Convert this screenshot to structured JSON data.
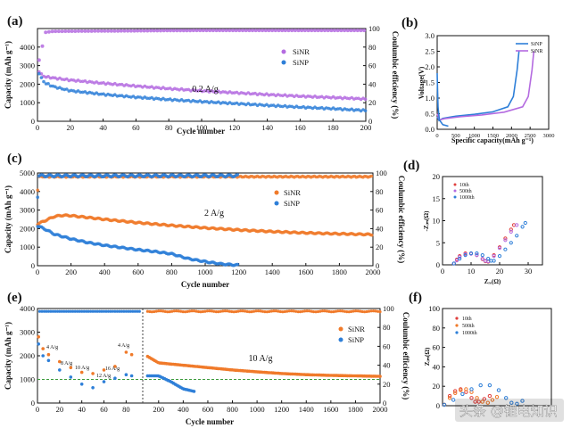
{
  "watermark": "头条 @锂电知识",
  "chart_data": [
    {
      "id": "a",
      "panel_label": "(a)",
      "type": "scatter",
      "xlabel": "Cycle number",
      "ylabel": "Capacity (mAh g⁻¹)",
      "y2label": "Coulumbic efficiency (%)",
      "xlim": [
        0,
        200
      ],
      "ylim": [
        0,
        5000
      ],
      "y2lim": [
        0,
        100
      ],
      "xticks": [
        0,
        20,
        40,
        60,
        80,
        100,
        120,
        140,
        160,
        180,
        200
      ],
      "yticks": [
        0,
        1000,
        2000,
        3000,
        4000
      ],
      "y2ticks": [
        0,
        20,
        40,
        60,
        80,
        100
      ],
      "annotation": "0.2 A/g",
      "legend_position": "upper-right",
      "series": [
        {
          "name": "SiNR",
          "color": "#b46be0",
          "axis": "left",
          "x": [
            1,
            3,
            5,
            10,
            20,
            40,
            60,
            80,
            100,
            120,
            140,
            160,
            180,
            200
          ],
          "y": [
            2700,
            2450,
            2400,
            2330,
            2220,
            2050,
            1900,
            1760,
            1640,
            1540,
            1440,
            1350,
            1280,
            1200
          ]
        },
        {
          "name": "SiNP",
          "color": "#2e7fd8",
          "axis": "left",
          "x": [
            1,
            3,
            5,
            10,
            20,
            40,
            60,
            80,
            100,
            120,
            140,
            160,
            180,
            200
          ],
          "y": [
            2600,
            2200,
            2050,
            1860,
            1650,
            1450,
            1300,
            1170,
            1060,
            960,
            860,
            760,
            680,
            580
          ]
        },
        {
          "name": "",
          "color": "#b46be0",
          "axis": "right",
          "x": [
            1,
            5,
            10,
            100,
            200
          ],
          "y": [
            66,
            96,
            97,
            98,
            98
          ]
        }
      ]
    },
    {
      "id": "b",
      "panel_label": "(b)",
      "type": "line",
      "xlabel": "Specific capacity(mAh g⁻¹)",
      "ylabel": "Voltage(V)",
      "xlim": [
        0,
        3000
      ],
      "ylim": [
        0,
        3.0
      ],
      "xticks": [
        0,
        500,
        1000,
        1500,
        2000,
        2500,
        3000
      ],
      "yticks": [
        0.0,
        0.5,
        1.0,
        1.5,
        2.0,
        2.5,
        3.0
      ],
      "legend_position": "upper-right",
      "series": [
        {
          "name": "SiNP",
          "color": "#2e7fd8",
          "x": [
            0,
            50,
            150,
            500,
            1000,
            1500,
            1900,
            2050,
            2150,
            2200
          ],
          "y": [
            0.4,
            0.28,
            0.35,
            0.42,
            0.48,
            0.56,
            0.72,
            1.05,
            1.9,
            2.5
          ]
        },
        {
          "name": "SiNR",
          "color": "#b46be0",
          "x": [
            0,
            60,
            200,
            600,
            1200,
            1800,
            2300,
            2450,
            2550,
            2600
          ],
          "y": [
            0.5,
            0.3,
            0.34,
            0.4,
            0.46,
            0.55,
            0.72,
            1.05,
            1.9,
            2.5
          ]
        },
        {
          "name": "",
          "color": "#2e7fd8",
          "x": [
            0,
            10,
            25,
            60,
            150,
            300
          ],
          "y": [
            1.8,
            1.3,
            0.7,
            0.3,
            0.15,
            0.1
          ]
        }
      ]
    },
    {
      "id": "c",
      "panel_label": "(c)",
      "type": "scatter",
      "xlabel": "Cycle number",
      "ylabel": "Capacity (mAh g⁻¹)",
      "y2label": "Coulumbic efficiency (%)",
      "xlim": [
        0,
        2000
      ],
      "ylim": [
        0,
        5000
      ],
      "y2lim": [
        0,
        100
      ],
      "xticks": [
        0,
        200,
        400,
        600,
        800,
        1000,
        1200,
        1400,
        1600,
        1800,
        2000
      ],
      "yticks": [
        0,
        1000,
        2000,
        3000,
        4000,
        5000
      ],
      "y2ticks": [
        0,
        20,
        40,
        60,
        80,
        100
      ],
      "annotation": "2 A/g",
      "legend_position": "center-right",
      "series": [
        {
          "name": "SiNR",
          "color": "#f07a2a",
          "axis": "left",
          "x": [
            1,
            50,
            100,
            150,
            200,
            300,
            400,
            600,
            800,
            1000,
            1200,
            1400,
            1600,
            1800,
            2000
          ],
          "y": [
            2250,
            2450,
            2650,
            2720,
            2700,
            2600,
            2500,
            2320,
            2170,
            2040,
            1930,
            1840,
            1770,
            1720,
            1680
          ]
        },
        {
          "name": "SiNP",
          "color": "#2e7fd8",
          "axis": "left",
          "x": [
            1,
            50,
            100,
            200,
            300,
            400,
            500,
            600,
            700,
            800,
            900,
            1000,
            1100,
            1200
          ],
          "y": [
            2150,
            1950,
            1700,
            1450,
            1250,
            1100,
            980,
            860,
            760,
            640,
            380,
            220,
            90,
            30
          ]
        },
        {
          "name": "",
          "color": "#f07a2a",
          "axis": "right",
          "x": [
            1,
            5,
            1200,
            2000
          ],
          "y": [
            82,
            96,
            96,
            96
          ]
        },
        {
          "name": "",
          "color": "#2e7fd8",
          "axis": "right",
          "x": [
            1,
            5,
            1200
          ],
          "y": [
            75,
            97,
            97
          ]
        }
      ]
    },
    {
      "id": "d",
      "panel_label": "(d)",
      "type": "scatter",
      "ylabel": "-Zᵢₘ(Ω)",
      "xlabel": "Zᵣₑ(Ω)",
      "xlim": [
        0,
        35
      ],
      "ylim": [
        0,
        20
      ],
      "xticks": [
        0,
        10,
        20,
        30
      ],
      "yticks": [
        0,
        5,
        10,
        15,
        20
      ],
      "legend_position": "upper-left",
      "series": [
        {
          "name": "10th",
          "color": "#e0403e",
          "x": [
            4,
            5,
            6,
            8,
            10,
            12,
            14,
            15,
            16,
            18,
            20,
            22,
            24,
            25
          ],
          "y": [
            0.3,
            1.2,
            2.0,
            2.6,
            2.6,
            2.2,
            1.3,
            0.8,
            0.7,
            2.2,
            4.0,
            6.0,
            8.0,
            9.0
          ]
        },
        {
          "name": "500th",
          "color": "#b46be0",
          "x": [
            4,
            5,
            6,
            8,
            10,
            12,
            14,
            15,
            16,
            18,
            20,
            22,
            24,
            26
          ],
          "y": [
            0.3,
            1.0,
            1.8,
            2.4,
            2.5,
            2.2,
            1.4,
            0.9,
            0.8,
            2.0,
            3.8,
            5.6,
            7.5,
            9.0
          ]
        },
        {
          "name": "1000th",
          "color": "#2e7fd8",
          "x": [
            4,
            6,
            8,
            10,
            12,
            14,
            16,
            17,
            18,
            20,
            22,
            24,
            26,
            28,
            29
          ],
          "y": [
            0.3,
            1.4,
            2.2,
            2.6,
            2.6,
            2.2,
            1.4,
            0.9,
            0.9,
            2.0,
            3.5,
            5.0,
            6.6,
            8.6,
            9.5
          ]
        }
      ]
    },
    {
      "id": "e",
      "panel_label": "(e)",
      "type": "scatter",
      "xlabel": "Cycle number",
      "ylabel": "Capacity (mAh g⁻¹)",
      "y2label": "Coulumbic efficiency (%)",
      "xticks_left": [
        0,
        20,
        40,
        60,
        80
      ],
      "xticks_right": [
        200,
        400,
        600,
        800,
        1000,
        1200,
        1400,
        1600,
        1800,
        2000
      ],
      "ylim": [
        0,
        4000
      ],
      "y2lim": [
        0,
        100
      ],
      "yticks": [
        0,
        1000,
        2000,
        3000,
        4000
      ],
      "y2ticks": [
        0,
        20,
        40,
        60,
        80,
        100
      ],
      "annotation": "10 A/g",
      "reference_line": 1000,
      "legend_position": "center-right",
      "rate_labels": [
        "4 A/g",
        "8 A/g",
        "10 A/g",
        "12 A/g",
        "16 A/g",
        "4 A/g"
      ],
      "series": [
        {
          "name": "SiNR",
          "color": "#f07a2a",
          "axis": "left",
          "x": [
            1,
            5,
            10,
            20,
            30,
            40,
            50,
            60,
            70,
            80,
            85,
            200,
            400,
            600,
            800,
            1000,
            1200,
            1400,
            1600,
            1800,
            2000
          ],
          "y": [
            2800,
            2300,
            2050,
            1750,
            1500,
            1300,
            1250,
            1400,
            1550,
            2150,
            2050,
            1700,
            1600,
            1500,
            1400,
            1320,
            1250,
            1200,
            1170,
            1150,
            1130
          ]
        },
        {
          "name": "SiNP",
          "color": "#2e7fd8",
          "axis": "left",
          "x": [
            1,
            5,
            10,
            20,
            30,
            40,
            50,
            60,
            70,
            80,
            85,
            200,
            300,
            400,
            500
          ],
          "y": [
            2500,
            2000,
            1800,
            1400,
            1100,
            800,
            650,
            900,
            1050,
            1200,
            1150,
            1150,
            900,
            600,
            480
          ]
        }
      ]
    },
    {
      "id": "f",
      "panel_label": "(f)",
      "type": "scatter",
      "ylabel": "Zᵢₘ(Ω)",
      "xlim": [
        0,
        120
      ],
      "ylim": [
        0,
        100
      ],
      "yticks": [
        0,
        20,
        40,
        60,
        80,
        100
      ],
      "legend_position": "upper-left",
      "series": [
        {
          "name": "10th",
          "color": "#e0403e",
          "x": [
            2,
            8,
            14,
            20,
            26,
            32,
            36,
            40,
            46,
            52
          ],
          "y": [
            1,
            10,
            15,
            17,
            14,
            8,
            4,
            4,
            7,
            10
          ]
        },
        {
          "name": "500th",
          "color": "#f07a2a",
          "x": [
            2,
            8,
            14,
            20,
            26,
            32,
            38,
            44,
            50,
            55,
            60
          ],
          "y": [
            1,
            8,
            13,
            16,
            17,
            14,
            8,
            4,
            3,
            6,
            9
          ]
        },
        {
          "name": "1000th",
          "color": "#2e7fd8",
          "x": [
            2,
            12,
            22,
            32,
            42,
            52,
            62,
            70,
            76,
            82,
            88
          ],
          "y": [
            1,
            6,
            12,
            17,
            21,
            21,
            16,
            8,
            3,
            2,
            5
          ]
        }
      ]
    }
  ]
}
